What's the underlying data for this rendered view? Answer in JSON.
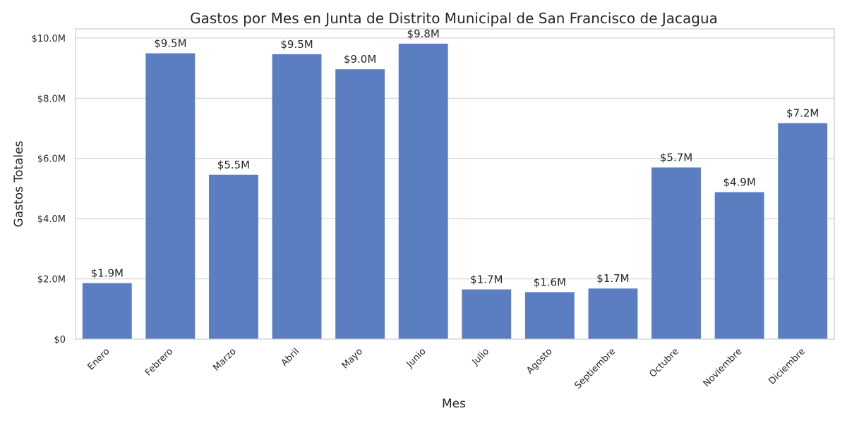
{
  "chart_data": {
    "type": "bar",
    "title": "Gastos por Mes en Junta de Distrito Municipal de San Francisco de Jacagua",
    "xlabel": "Mes",
    "ylabel": "Gastos Totales",
    "categories": [
      "Enero",
      "Febrero",
      "Marzo",
      "Abril",
      "Mayo",
      "Junio",
      "Julio",
      "Agosto",
      "Septiembre",
      "Octubre",
      "Noviembre",
      "Diciembre"
    ],
    "values": [
      1.86,
      9.49,
      5.46,
      9.46,
      8.96,
      9.81,
      1.65,
      1.56,
      1.68,
      5.7,
      4.88,
      7.17
    ],
    "data_labels": [
      "$1.9M",
      "$9.5M",
      "$5.5M",
      "$9.5M",
      "$9.0M",
      "$9.8M",
      "$1.7M",
      "$1.6M",
      "$1.7M",
      "$5.7M",
      "$4.9M",
      "$7.2M"
    ],
    "value_unit": "millones de USD",
    "ylim": [
      0,
      10.3
    ],
    "yticks": [
      0,
      2,
      4,
      6,
      8,
      10
    ],
    "ytick_labels": [
      "$0",
      "$2.0M",
      "$4.0M",
      "$6.0M",
      "$8.0M",
      "$10.0M"
    ],
    "xtick_rotation": -45,
    "grid": "y",
    "legend": "none",
    "colors": {
      "bar": "#5b7ec2",
      "grid": "#cccccc",
      "text": "#262626"
    }
  }
}
